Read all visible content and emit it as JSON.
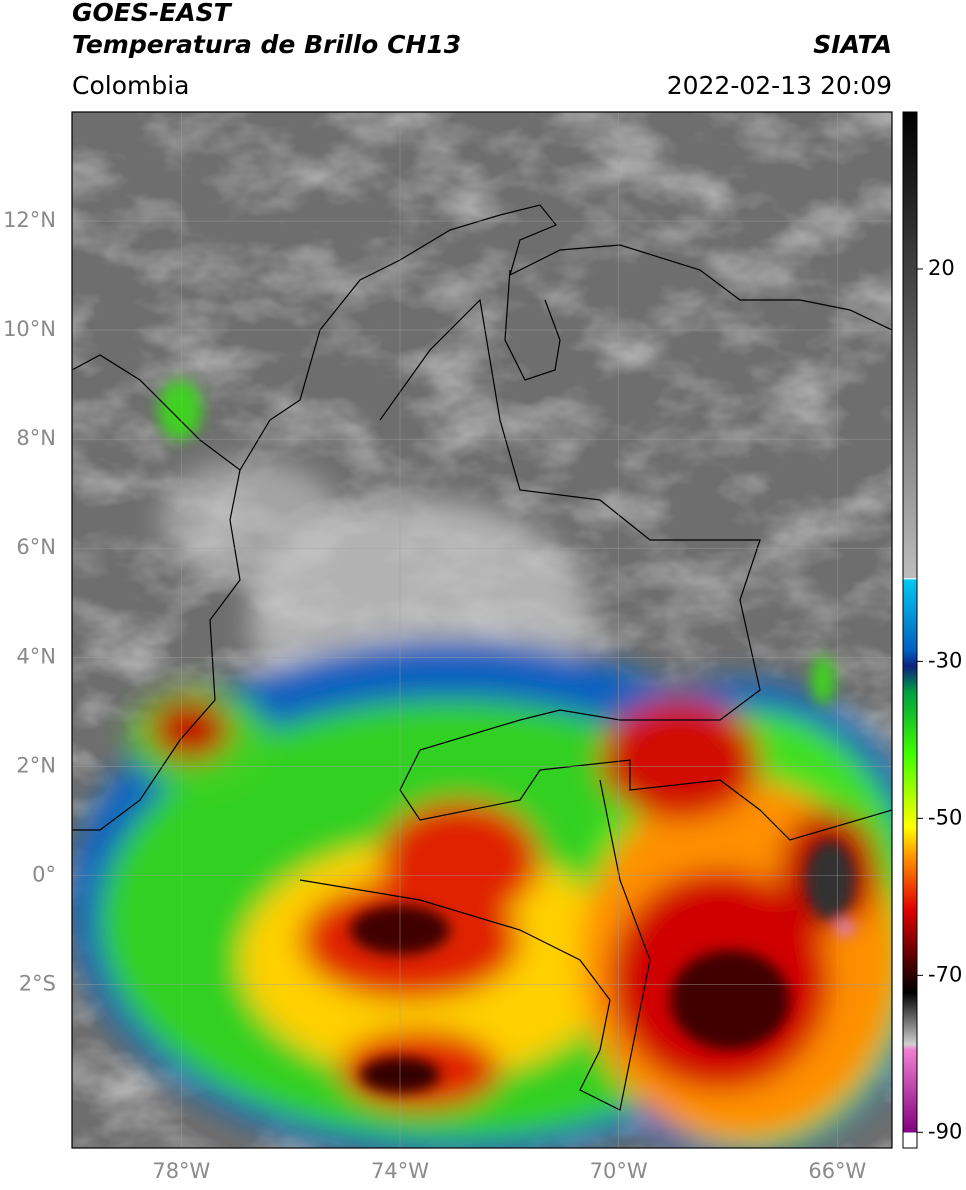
{
  "header": {
    "title": "GOES-EAST",
    "subtitle": "Temperatura de Brillo CH13",
    "source": "SIATA",
    "region": "Colombia",
    "datetime": "2022-02-13 20:09"
  },
  "map": {
    "xlim": [
      -80,
      -65
    ],
    "ylim": [
      -5,
      14
    ],
    "grid": true,
    "xticks": [
      {
        "value": -78,
        "label": "78°W"
      },
      {
        "value": -74,
        "label": "74°W"
      },
      {
        "value": -70,
        "label": "70°W"
      },
      {
        "value": -66,
        "label": "66°W"
      }
    ],
    "yticks": [
      {
        "value": 12,
        "label": "12°N"
      },
      {
        "value": 10,
        "label": "10°N"
      },
      {
        "value": 8,
        "label": "8°N"
      },
      {
        "value": 6,
        "label": "6°N"
      },
      {
        "value": 4,
        "label": "4°N"
      },
      {
        "value": 2,
        "label": "2°N"
      },
      {
        "value": 0,
        "label": "0°"
      },
      {
        "value": -2,
        "label": "2°S"
      }
    ]
  },
  "colorbar": {
    "clim": [
      -92,
      40
    ],
    "ticks": [
      20,
      -30,
      -50,
      -70,
      -90
    ]
  }
}
